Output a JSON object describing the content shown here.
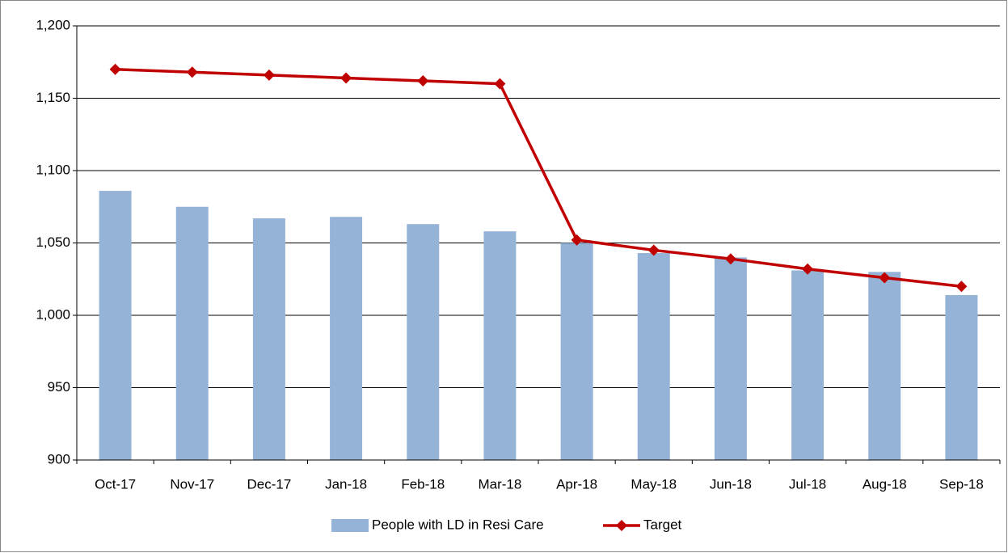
{
  "chart_data": {
    "type": "bar",
    "categories": [
      "Oct-17",
      "Nov-17",
      "Dec-17",
      "Jan-18",
      "Feb-18",
      "Mar-18",
      "Apr-18",
      "May-18",
      "Jun-18",
      "Jul-18",
      "Aug-18",
      "Sep-18"
    ],
    "series": [
      {
        "name": "People with LD in Resi Care",
        "type": "bar",
        "color": "#95b3d7",
        "values": [
          1086,
          1075,
          1067,
          1068,
          1063,
          1058,
          1050,
          1043,
          1040,
          1031,
          1030,
          1014
        ]
      },
      {
        "name": "Target",
        "type": "line",
        "color": "#c00000",
        "values": [
          1170,
          1168,
          1166,
          1164,
          1162,
          1160,
          1052,
          1045,
          1039,
          1032,
          1026,
          1020
        ]
      }
    ],
    "ylim": [
      900,
      1200
    ],
    "yticks": [
      900,
      950,
      {
        "value": 1000,
        "label": "1,000"
      },
      {
        "value": 1050,
        "label": "1,050"
      },
      {
        "value": 1100,
        "label": "1,100"
      },
      {
        "value": 1150,
        "label": "1,150"
      },
      {
        "value": 1200,
        "label": "1,200"
      }
    ],
    "grid": true,
    "legend": "bottom"
  }
}
